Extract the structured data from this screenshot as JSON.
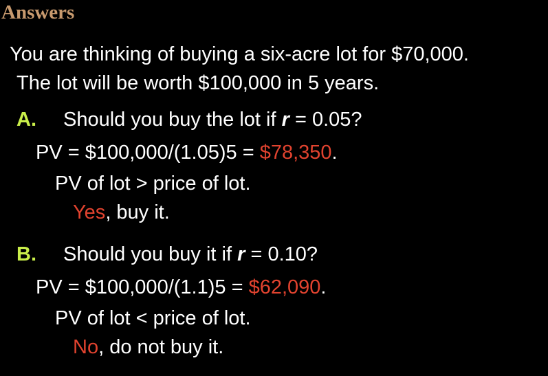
{
  "title": "Answers",
  "intro": {
    "line1": "You are thinking of buying a six-acre lot for $70,000.",
    "line2": "The lot will be worth $100,000 in 5 years."
  },
  "question_a": {
    "letter": "A.",
    "text_before": "Should you buy the lot if ",
    "var": "r",
    "text_after": " = 0.05?",
    "pv_prefix": "PV = $100,000/(1.05)5 = ",
    "pv_value": "$78,350",
    "pv_suffix": ".",
    "comparison": "PV of lot > price of lot.",
    "decision_word": "Yes",
    "decision_rest": ", buy it."
  },
  "question_b": {
    "letter": "B.",
    "text_before": "Should you buy it if ",
    "var": "r",
    "text_after": " = 0.10?",
    "pv_prefix": "PV = $100,000/(1.1)5 = ",
    "pv_value": "$62,090",
    "pv_suffix": ".",
    "comparison": "PV of lot < price of lot.",
    "decision_word": "No",
    "decision_rest": ", do not buy it."
  },
  "colors": {
    "background": "#000000",
    "title": "#c89a6e",
    "letter": "#c9ee4a",
    "highlight": "#e2432f",
    "text": "#ffffff"
  }
}
